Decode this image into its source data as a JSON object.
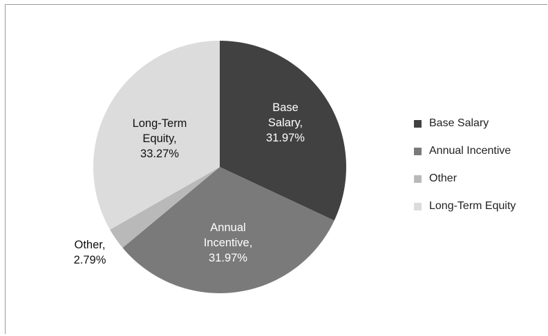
{
  "chart_data": {
    "type": "pie",
    "title": "",
    "slices": [
      {
        "label": "Base Salary",
        "value": 31.97,
        "color": "#414141",
        "callout": [
          "Base",
          "Salary,",
          "31.97%"
        ],
        "label_color": "#ffffff"
      },
      {
        "label": "Annual Incentive",
        "value": 31.97,
        "color": "#7a7a7a",
        "callout": [
          "Annual",
          "Incentive,",
          "31.97%"
        ],
        "label_color": "#ffffff"
      },
      {
        "label": "Other",
        "value": 2.79,
        "color": "#b9b9b9",
        "callout": [
          "Other,",
          "2.79%"
        ],
        "label_color": "#111111"
      },
      {
        "label": "Long-Term Equity",
        "value": 33.27,
        "color": "#dcdcdc",
        "callout": [
          "Long-Term",
          "Equity,",
          "33.27%"
        ],
        "label_color": "#111111"
      }
    ],
    "start_angle": "top, clockwise",
    "legend_position": "right"
  }
}
